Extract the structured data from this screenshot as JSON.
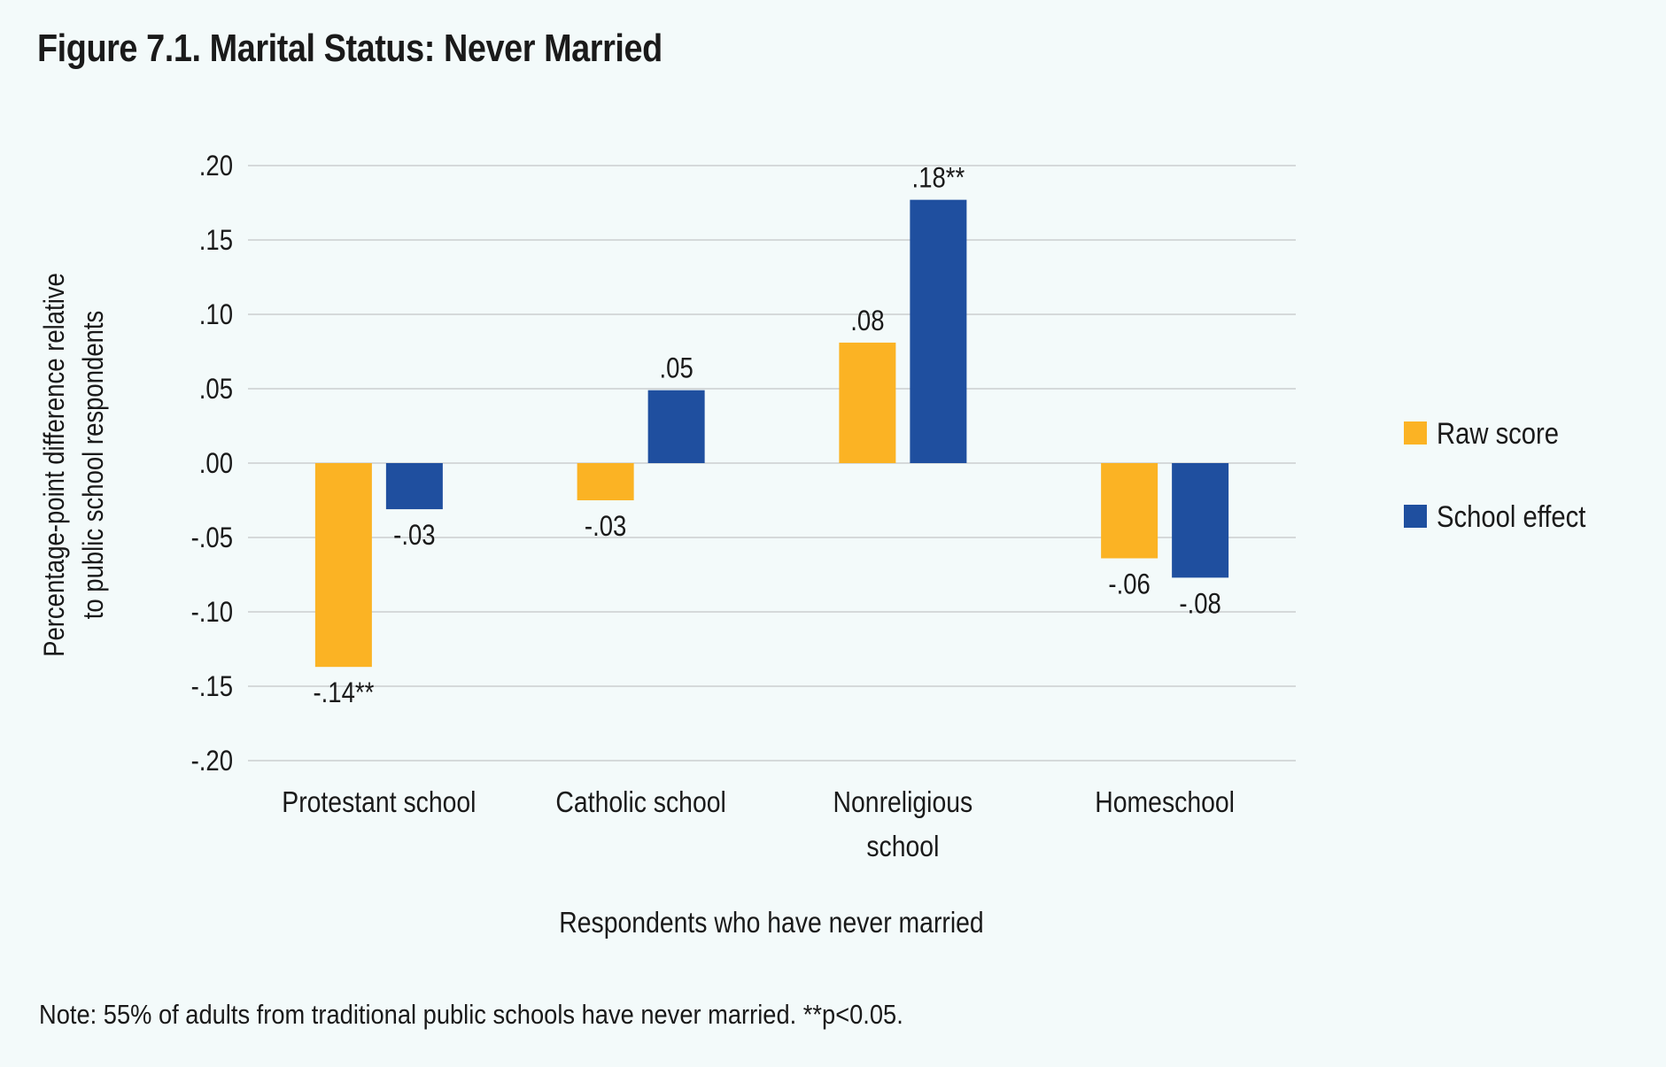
{
  "figure": {
    "title": "Figure 7.1. Marital Status: Never Married",
    "note": "Note: 55% of adults from traditional public schools have never married. **p<0.05."
  },
  "colors": {
    "raw": "#fbb324",
    "effect": "#1f4f9f",
    "grid": "#d5d9da",
    "background": "#f3fafa"
  },
  "chart_data": {
    "type": "bar",
    "title": "Figure 7.1. Marital Status: Never Married",
    "xlabel": "Respondents who have never married",
    "ylabel": [
      "Percentage-point difference relative",
      "to public school respondents"
    ],
    "ylim": [
      -0.2,
      0.2
    ],
    "yticks": [
      0.2,
      0.15,
      0.1,
      0.05,
      0.0,
      -0.05,
      -0.1,
      -0.15,
      -0.2
    ],
    "ytick_labels": [
      ".20",
      ".15",
      ".10",
      ".05",
      ".00",
      "-.05",
      "-.10",
      "-.15",
      "-.20"
    ],
    "grid": true,
    "legend_position": "right",
    "categories": [
      [
        "Protestant school"
      ],
      [
        "Catholic school"
      ],
      [
        "Nonreligious",
        "school"
      ],
      [
        "Homeschool"
      ]
    ],
    "series": [
      {
        "name": "Raw score",
        "color": "#fbb324",
        "values": [
          -0.137,
          -0.025,
          0.081,
          -0.064
        ],
        "labels": [
          "-.14**",
          "-.03",
          ".08",
          "-.06"
        ]
      },
      {
        "name": "School effect",
        "color": "#1f4f9f",
        "values": [
          -0.031,
          0.049,
          0.177,
          -0.077
        ],
        "labels": [
          "-.03",
          ".05",
          ".18**",
          "-.08"
        ]
      }
    ]
  }
}
